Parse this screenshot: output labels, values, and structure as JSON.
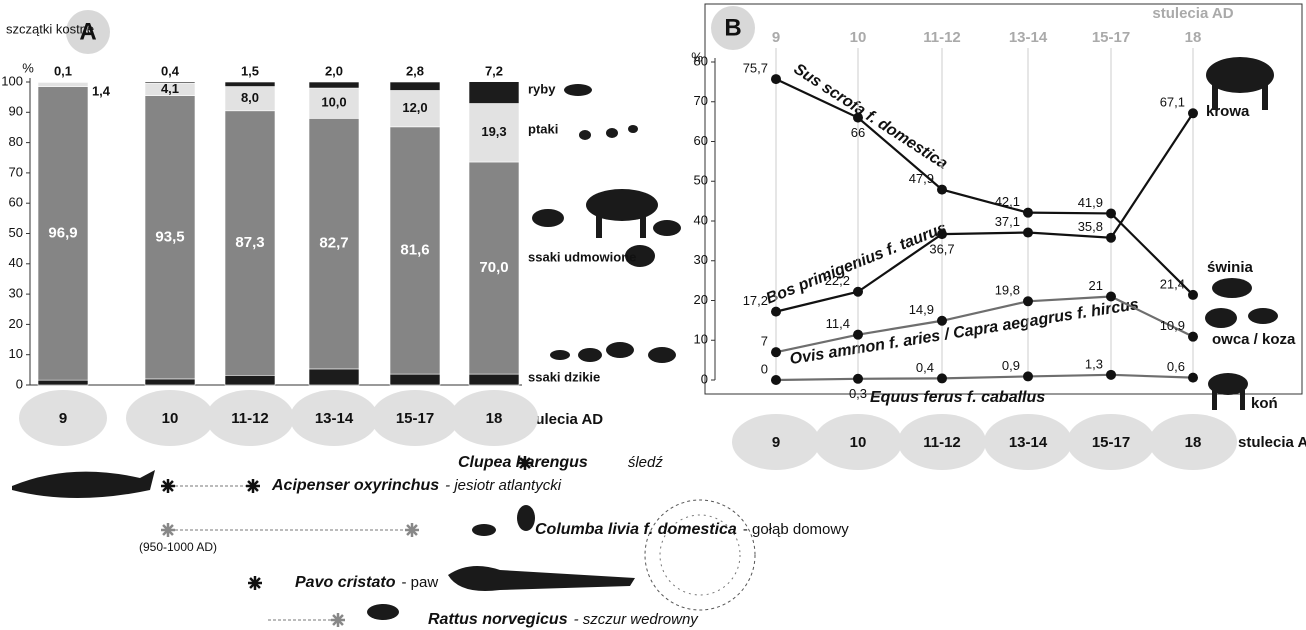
{
  "chart_data": [
    {
      "type": "bar",
      "stacked": true,
      "panel": "A",
      "title": "szczątki kostne",
      "ylabel": "%",
      "xlabel": "stulecia AD",
      "categories": [
        "9",
        "10",
        "11-12",
        "13-14",
        "15-17",
        "18"
      ],
      "ylim": [
        0,
        100
      ],
      "yticks": [
        0,
        10,
        20,
        30,
        40,
        50,
        60,
        70,
        80,
        90,
        100
      ],
      "series": [
        {
          "name": "ssaki dzikie",
          "color": "#1c1c1c",
          "values": [
            1.6,
            2.0,
            3.2,
            5.3,
            3.6,
            3.6
          ],
          "value_labels": [
            "1,6",
            "2,0",
            "3,2",
            "5,3",
            "3,6",
            "3,6"
          ]
        },
        {
          "name": "ssaki udmowione",
          "color": "#858585",
          "values": [
            96.9,
            93.5,
            87.3,
            82.7,
            81.6,
            70.0
          ],
          "value_labels": [
            "96,9",
            "93,5",
            "87,3",
            "82,7",
            "81,6",
            "70,0"
          ]
        },
        {
          "name": "ptaki",
          "color": "#e2e2e2",
          "values": [
            1.4,
            4.1,
            8.0,
            10.0,
            12.0,
            19.3
          ],
          "value_labels": [
            "1,4",
            "4,1",
            "8,0",
            "10,0",
            "12,0",
            "19,3"
          ]
        },
        {
          "name": "ryby",
          "color": "#1c1c1c",
          "values": [
            0.1,
            0.4,
            1.5,
            2.0,
            2.8,
            7.2
          ],
          "value_labels": [
            "0,1",
            "0,4",
            "1,5",
            "2,0",
            "2,8",
            "7,2"
          ]
        }
      ]
    },
    {
      "type": "line",
      "panel": "B",
      "ylabel": "%",
      "xlabel": "stulecia AD",
      "categories": [
        "9",
        "10",
        "11-12",
        "13-14",
        "15-17",
        "18"
      ],
      "ylim": [
        0,
        80
      ],
      "yticks": [
        0,
        10,
        20,
        30,
        40,
        50,
        60,
        70,
        80
      ],
      "grid": true,
      "series": [
        {
          "name": "Sus scrofa f. domestica",
          "end_label": "świnia",
          "color": "#111111",
          "values": [
            75.7,
            66,
            47.9,
            42.1,
            41.9,
            21.4
          ],
          "value_labels": [
            "75,7",
            "66",
            "47,9",
            "42,1",
            "41,9",
            "21,4"
          ]
        },
        {
          "name": "Bos primigenius f. taurus",
          "end_label": "krowa",
          "color": "#111111",
          "values": [
            17.2,
            22.2,
            36.7,
            37.1,
            35.8,
            67.1
          ],
          "value_labels": [
            "17,2",
            "22,2",
            "36,7",
            "37,1",
            "35,8",
            "67,1"
          ]
        },
        {
          "name": "Ovis ammon f. aries / Capra aegagrus f. hircus",
          "end_label": "owca / koza",
          "color": "#6e6e6e",
          "values": [
            7,
            11.4,
            14.9,
            19.8,
            21,
            10.9
          ],
          "value_labels": [
            "7",
            "11,4",
            "14,9",
            "19,8",
            "21",
            "10,9"
          ]
        },
        {
          "name": "Equus ferus f. caballus",
          "end_label": "koń",
          "color": "#6e6e6e",
          "values": [
            0,
            0.3,
            0.4,
            0.9,
            1.3,
            0.6
          ],
          "value_labels": [
            "0",
            "0,3",
            "0,4",
            "0,9",
            "1,3",
            "0,6"
          ]
        }
      ]
    }
  ],
  "species": [
    {
      "latin": "Clupea harengus",
      "common": "śledź"
    },
    {
      "latin": "Acipenser oxyrinchus",
      "common": "- jesiotr atlantycki"
    },
    {
      "latin": "Columba livia f. domestica",
      "common": "- gołąb domowy",
      "note": "(950-1000 AD)"
    },
    {
      "latin": "Pavo cristato",
      "common": "- paw"
    },
    {
      "latin": "Rattus norvegicus",
      "common": "- szczur wedrowny"
    }
  ]
}
